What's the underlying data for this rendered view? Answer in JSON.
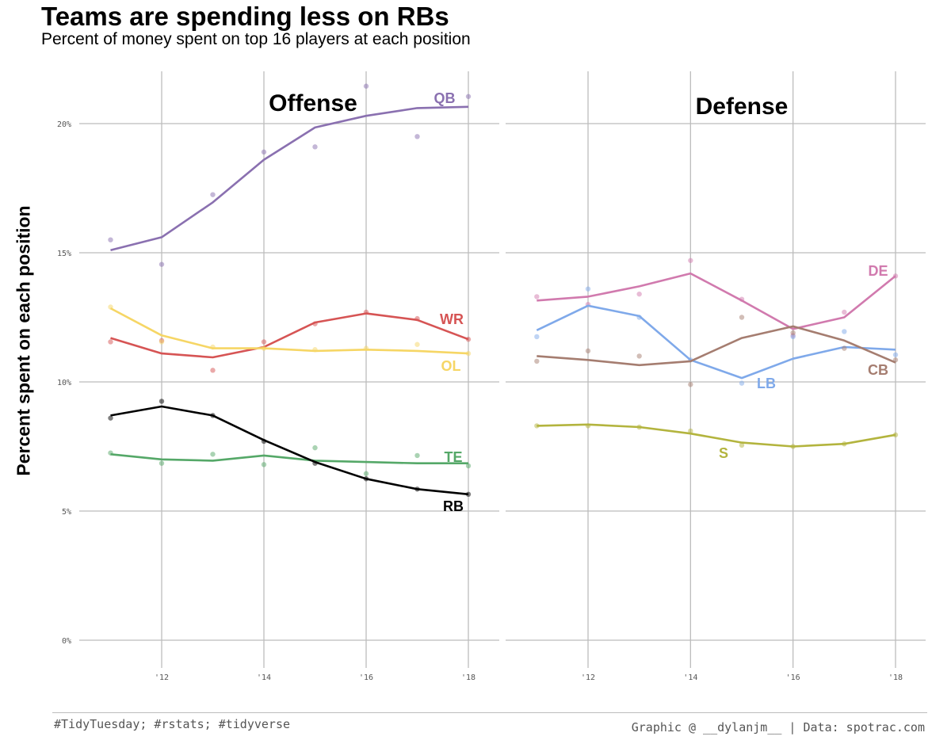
{
  "title": "Teams are spending less on RBs",
  "subtitle": "Percent of money spent on top 16 players at each position",
  "caption_left": "#TidyTuesday; #rstats; #tidyverse",
  "caption_right": "Graphic @ __dylanjm__ | Data: spotrac.com",
  "chart_data": {
    "type": "line",
    "ylabel": "Percent spent on each position",
    "ylim": [
      0,
      22
    ],
    "yticks": [
      0,
      5,
      10,
      15,
      20
    ],
    "ytick_labels": [
      "0%",
      "5%",
      "10%",
      "15%",
      "20%"
    ],
    "xlim": [
      2010.3,
      2018.6
    ],
    "xticks": [
      2012,
      2014,
      2016,
      2018
    ],
    "xtick_labels": [
      "'12",
      "'14",
      "'16",
      "'18"
    ],
    "grid": true,
    "x": [
      2011,
      2012,
      2013,
      2014,
      2015,
      2016,
      2017,
      2018
    ],
    "panels": [
      {
        "title": "Offense",
        "series": [
          {
            "name": "QB",
            "color": "#8a70b0",
            "points": [
              15.5,
              14.55,
              17.25,
              18.9,
              19.1,
              21.45,
              19.5,
              21.05
            ],
            "trend": [
              15.1,
              15.6,
              16.95,
              18.6,
              19.85,
              20.3,
              20.6,
              20.65
            ]
          },
          {
            "name": "WR",
            "color": "#d65454",
            "points": [
              11.55,
              11.6,
              10.45,
              11.55,
              12.25,
              12.7,
              12.45,
              11.65
            ],
            "trend": [
              11.7,
              11.1,
              10.95,
              11.35,
              12.3,
              12.65,
              12.4,
              11.65
            ]
          },
          {
            "name": "OL",
            "color": "#f6d665",
            "points": [
              12.9,
              11.55,
              11.35,
              11.3,
              11.25,
              11.3,
              11.45,
              11.1
            ],
            "trend": [
              12.85,
              11.8,
              11.3,
              11.3,
              11.2,
              11.25,
              11.2,
              11.1
            ]
          },
          {
            "name": "TE",
            "color": "#55a868",
            "points": [
              7.25,
              6.85,
              7.2,
              6.8,
              7.45,
              6.45,
              7.15,
              6.75
            ],
            "trend": [
              7.2,
              7.0,
              6.95,
              7.15,
              6.95,
              6.9,
              6.85,
              6.85
            ]
          },
          {
            "name": "RB",
            "color": "#000000",
            "points": [
              8.6,
              9.25,
              8.7,
              7.7,
              6.85,
              6.25,
              5.85,
              5.65
            ],
            "trend": [
              8.7,
              9.05,
              8.7,
              7.75,
              6.9,
              6.25,
              5.85,
              5.65
            ]
          }
        ]
      },
      {
        "title": "Defense",
        "series": [
          {
            "name": "DE",
            "color": "#d17aae",
            "points": [
              13.3,
              13.0,
              13.4,
              14.7,
              13.2,
              11.8,
              12.7,
              14.1
            ],
            "trend": [
              13.15,
              13.3,
              13.7,
              14.2,
              13.15,
              12.05,
              12.5,
              14.1
            ]
          },
          {
            "name": "LB",
            "color": "#7fa9ea",
            "points": [
              11.75,
              13.6,
              12.5,
              10.85,
              9.95,
              11.75,
              11.95,
              11.05
            ],
            "trend": [
              12.0,
              12.95,
              12.55,
              10.85,
              10.15,
              10.9,
              11.35,
              11.25
            ]
          },
          {
            "name": "CB",
            "color": "#a57d70",
            "points": [
              10.8,
              11.2,
              11.0,
              9.9,
              12.5,
              11.9,
              11.3,
              10.85
            ],
            "trend": [
              11.0,
              10.85,
              10.65,
              10.8,
              11.7,
              12.15,
              11.6,
              10.75
            ]
          },
          {
            "name": "S",
            "color": "#b3b43e",
            "points": [
              8.3,
              8.3,
              8.25,
              8.1,
              7.55,
              7.5,
              7.6,
              7.95
            ],
            "trend": [
              8.3,
              8.35,
              8.25,
              8.0,
              7.65,
              7.5,
              7.6,
              7.95
            ]
          }
        ]
      }
    ]
  }
}
